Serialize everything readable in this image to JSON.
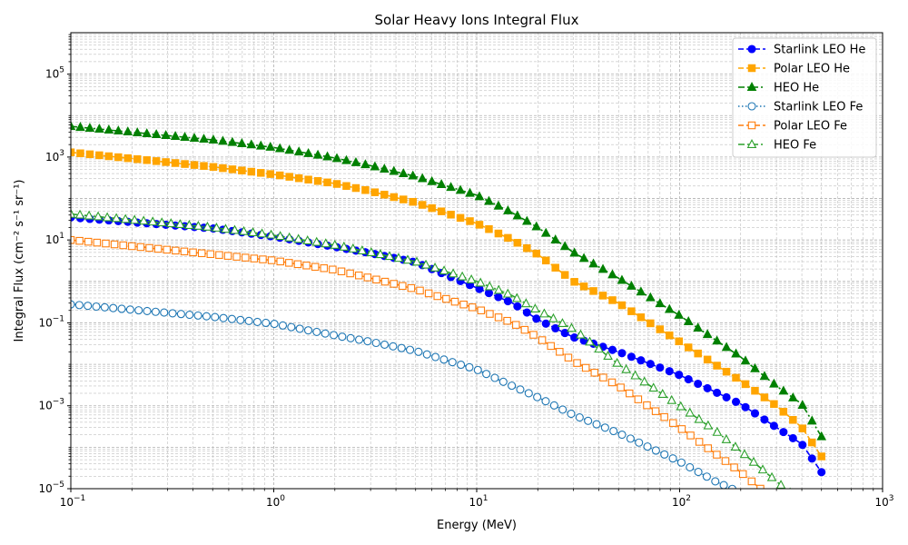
{
  "chart_data": {
    "type": "line",
    "title": "Solar Heavy Ions Integral Flux",
    "xlabel": "Energy (MeV)",
    "ylabel": "Integral Flux (cm⁻² s⁻¹ sr⁻¹)",
    "xscale": "log",
    "yscale": "log",
    "xlim": [
      0.1,
      1000
    ],
    "ylim": [
      1e-05,
      1000000
    ],
    "grid": "both major and minor, dashed",
    "legend_position": "top-right",
    "x_ticks": [
      {
        "value": 0.1,
        "base": "10",
        "exp": "−1"
      },
      {
        "value": 1,
        "base": "10",
        "exp": "0"
      },
      {
        "value": 10,
        "base": "10",
        "exp": "1"
      },
      {
        "value": 100,
        "base": "10",
        "exp": "2"
      },
      {
        "value": 1000,
        "base": "10",
        "exp": "3"
      }
    ],
    "y_ticks": [
      {
        "value": 1e-05,
        "base": "10",
        "exp": "−5"
      },
      {
        "value": 0.001,
        "base": "10",
        "exp": "−3"
      },
      {
        "value": 0.1,
        "base": "10",
        "exp": "−1"
      },
      {
        "value": 10,
        "base": "10",
        "exp": "1"
      },
      {
        "value": 1000,
        "base": "10",
        "exp": "3"
      },
      {
        "value": 100000,
        "base": "10",
        "exp": "5"
      }
    ],
    "series": [
      {
        "name": "Starlink LEO He",
        "color": "#0000ff",
        "marker": "circle",
        "filled": true,
        "line_style": "dashed",
        "points": [
          [
            0.1,
            35
          ],
          [
            0.5,
            19
          ],
          [
            1,
            12
          ],
          [
            2,
            6.8
          ],
          [
            3,
            4.8
          ],
          [
            5,
            2.9
          ],
          [
            10,
            0.7
          ],
          [
            15,
            0.3
          ],
          [
            20,
            0.12
          ],
          [
            30,
            0.045
          ],
          [
            50,
            0.02
          ],
          [
            100,
            0.0055
          ],
          [
            200,
            0.0011
          ],
          [
            300,
            0.0003
          ],
          [
            400,
            0.00012
          ],
          [
            500,
            2.5e-05
          ]
        ]
      },
      {
        "name": "Polar LEO He",
        "color": "#ffa500",
        "marker": "square",
        "filled": true,
        "line_style": "dashed",
        "points": [
          [
            0.1,
            1300
          ],
          [
            0.5,
            580
          ],
          [
            1,
            380
          ],
          [
            2,
            230
          ],
          [
            3,
            150
          ],
          [
            5,
            80
          ],
          [
            10,
            25
          ],
          [
            15,
            10
          ],
          [
            20,
            4.5
          ],
          [
            30,
            1
          ],
          [
            50,
            0.3
          ],
          [
            100,
            0.035
          ],
          [
            200,
            0.004
          ],
          [
            300,
            0.001
          ],
          [
            400,
            0.0003
          ],
          [
            500,
            6e-05
          ]
        ]
      },
      {
        "name": "HEO He",
        "color": "#008000",
        "marker": "triangle",
        "filled": true,
        "line_style": "dashdot",
        "points": [
          [
            0.1,
            5500
          ],
          [
            0.5,
            2600
          ],
          [
            1,
            1700
          ],
          [
            2,
            950
          ],
          [
            3,
            620
          ],
          [
            5,
            340
          ],
          [
            10,
            120
          ],
          [
            15,
            45
          ],
          [
            20,
            20
          ],
          [
            30,
            5
          ],
          [
            50,
            1.2
          ],
          [
            100,
            0.15
          ],
          [
            200,
            0.015
          ],
          [
            300,
            0.003
          ],
          [
            400,
            0.0011
          ],
          [
            500,
            0.00018
          ]
        ]
      },
      {
        "name": "Starlink LEO Fe",
        "color": "#1f77b4",
        "marker": "circle",
        "filled": false,
        "line_style": "dotted",
        "points": [
          [
            0.1,
            0.28
          ],
          [
            0.5,
            0.14
          ],
          [
            1,
            0.095
          ],
          [
            2,
            0.05
          ],
          [
            3,
            0.035
          ],
          [
            5,
            0.021
          ],
          [
            10,
            0.0075
          ],
          [
            15,
            0.003
          ],
          [
            20,
            0.0016
          ],
          [
            30,
            0.0006
          ],
          [
            50,
            0.00022
          ],
          [
            100,
            4.5e-05
          ],
          [
            150,
            1.5e-05
          ],
          [
            200,
            8e-06
          ]
        ]
      },
      {
        "name": "Polar LEO Fe",
        "color": "#ff7f0e",
        "marker": "square",
        "filled": false,
        "line_style": "dashed",
        "points": [
          [
            0.1,
            10
          ],
          [
            0.5,
            4.5
          ],
          [
            1,
            3.2
          ],
          [
            2,
            1.9
          ],
          [
            3,
            1.2
          ],
          [
            5,
            0.65
          ],
          [
            10,
            0.22
          ],
          [
            15,
            0.1
          ],
          [
            20,
            0.045
          ],
          [
            30,
            0.012
          ],
          [
            50,
            0.003
          ],
          [
            100,
            0.0003
          ],
          [
            150,
            7e-05
          ],
          [
            200,
            2.5e-05
          ],
          [
            250,
            1e-05
          ]
        ]
      },
      {
        "name": "HEO Fe",
        "color": "#2ca02c",
        "marker": "triangle",
        "filled": false,
        "line_style": "dashdot",
        "points": [
          [
            0.1,
            42
          ],
          [
            0.5,
            20
          ],
          [
            1,
            13
          ],
          [
            2,
            7.5
          ],
          [
            3,
            5
          ],
          [
            5,
            3
          ],
          [
            10,
            1
          ],
          [
            15,
            0.45
          ],
          [
            20,
            0.2
          ],
          [
            30,
            0.07
          ],
          [
            50,
            0.01
          ],
          [
            100,
            0.001
          ],
          [
            150,
            0.00025
          ],
          [
            200,
            8e-05
          ],
          [
            300,
            1.5e-05
          ],
          [
            350,
            8e-06
          ]
        ]
      }
    ]
  }
}
